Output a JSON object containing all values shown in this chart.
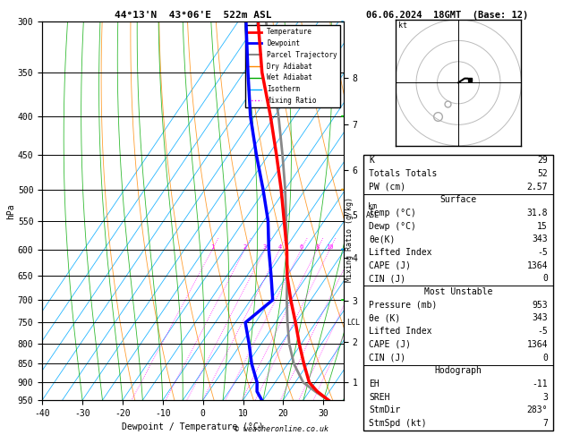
{
  "title_left": "44°13'N  43°06'E  522m ASL",
  "title_right": "06.06.2024  18GMT  (Base: 12)",
  "xlabel": "Dewpoint / Temperature (°C)",
  "ylabel_left": "hPa",
  "pressure_levels": [
    300,
    350,
    400,
    450,
    500,
    550,
    600,
    650,
    700,
    750,
    800,
    850,
    900,
    950
  ],
  "temp_range": [
    -40,
    35
  ],
  "pressure_range": [
    300,
    950
  ],
  "temp_profile": {
    "pressure": [
      953,
      925,
      900,
      850,
      800,
      750,
      700,
      650,
      600,
      550,
      500,
      450,
      400,
      350,
      300
    ],
    "temp": [
      31.8,
      27.0,
      23.5,
      19.0,
      14.5,
      10.0,
      5.0,
      0.0,
      -4.5,
      -10.0,
      -16.0,
      -23.0,
      -31.0,
      -40.5,
      -50.0
    ],
    "color": "#ff0000",
    "lw": 2.5
  },
  "dewpoint_profile": {
    "pressure": [
      953,
      925,
      900,
      850,
      800,
      750,
      700,
      650,
      600,
      550,
      500,
      450,
      400,
      350,
      300
    ],
    "temp": [
      15.0,
      12.0,
      10.5,
      6.0,
      2.0,
      -2.5,
      0.5,
      -4.0,
      -9.0,
      -14.0,
      -20.5,
      -28.0,
      -36.0,
      -44.0,
      -53.0
    ],
    "color": "#0000ff",
    "lw": 2.5
  },
  "parcel_trajectory": {
    "pressure": [
      953,
      925,
      900,
      850,
      800,
      750,
      700,
      650,
      600,
      550,
      500,
      450,
      400,
      350,
      300
    ],
    "temp": [
      31.8,
      26.5,
      22.0,
      16.5,
      12.0,
      8.0,
      4.0,
      0.0,
      -4.5,
      -9.5,
      -15.0,
      -21.5,
      -29.0,
      -38.0,
      -48.0
    ],
    "color": "#888888",
    "lw": 2.0
  },
  "lcl_pressure": 750,
  "mixing_ratio_values": [
    1,
    2,
    3,
    4,
    6,
    8,
    10,
    15,
    20,
    25
  ],
  "mixing_ratio_color": "#ff00ff",
  "isotherm_color": "#00aaff",
  "dry_adiabat_color": "#ff8800",
  "wet_adiabat_color": "#00aa00",
  "legend_labels": [
    "Temperature",
    "Dewpoint",
    "Parcel Trajectory",
    "Dry Adiabat",
    "Wet Adiabat",
    "Isotherm",
    "Mixing Ratio"
  ],
  "stats_rows": [
    {
      "type": "row",
      "label": "K",
      "value": "29"
    },
    {
      "type": "row",
      "label": "Totals Totals",
      "value": "52"
    },
    {
      "type": "row",
      "label": "PW (cm)",
      "value": "2.57"
    },
    {
      "type": "header",
      "text": "Surface"
    },
    {
      "type": "row",
      "label": "Temp (°C)",
      "value": "31.8"
    },
    {
      "type": "row",
      "label": "Dewp (°C)",
      "value": "15"
    },
    {
      "type": "row",
      "label": "θe(K)",
      "value": "343"
    },
    {
      "type": "row",
      "label": "Lifted Index",
      "value": "-5"
    },
    {
      "type": "row",
      "label": "CAPE (J)",
      "value": "1364"
    },
    {
      "type": "row",
      "label": "CIN (J)",
      "value": "0"
    },
    {
      "type": "header",
      "text": "Most Unstable"
    },
    {
      "type": "row",
      "label": "Pressure (mb)",
      "value": "953"
    },
    {
      "type": "row",
      "label": "θe (K)",
      "value": "343"
    },
    {
      "type": "row",
      "label": "Lifted Index",
      "value": "-5"
    },
    {
      "type": "row",
      "label": "CAPE (J)",
      "value": "1364"
    },
    {
      "type": "row",
      "label": "CIN (J)",
      "value": "0"
    },
    {
      "type": "header",
      "text": "Hodograph"
    },
    {
      "type": "row",
      "label": "EH",
      "value": "-11"
    },
    {
      "type": "row",
      "label": "SREH",
      "value": "3"
    },
    {
      "type": "row",
      "label": "StmDir",
      "value": "283°"
    },
    {
      "type": "row",
      "label": "StmSpd (kt)",
      "value": "7"
    }
  ],
  "copyright": "© weatheronline.co.uk",
  "skew": 0.85
}
